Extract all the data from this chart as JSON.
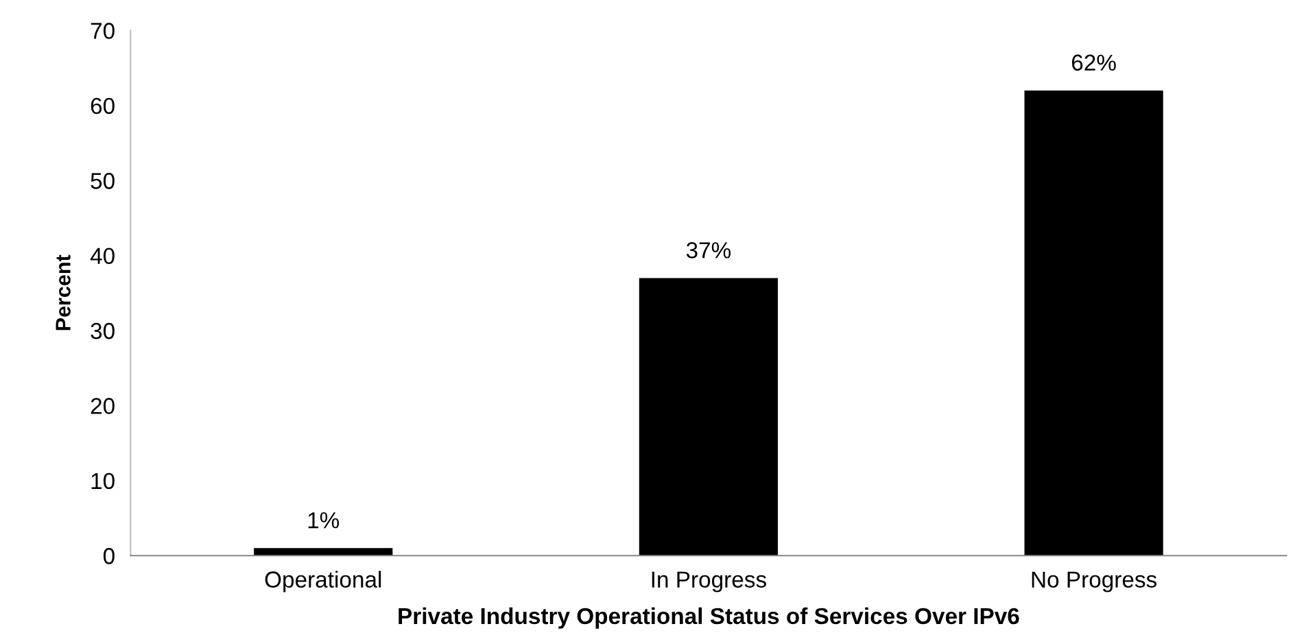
{
  "chart_data": {
    "type": "bar",
    "xlabel": "Private Industry Operational Status of Services Over IPv6",
    "ylabel": "Percent",
    "categories": [
      "Operational",
      "In Progress",
      "No Progress"
    ],
    "values": [
      1,
      37,
      62
    ],
    "value_labels": [
      "1%",
      "37%",
      "62%"
    ],
    "color": "#000000",
    "ylim": [
      0,
      70
    ],
    "yticks": [
      0,
      10,
      20,
      30,
      40,
      50,
      60,
      70
    ],
    "grid": false,
    "legend": false
  }
}
